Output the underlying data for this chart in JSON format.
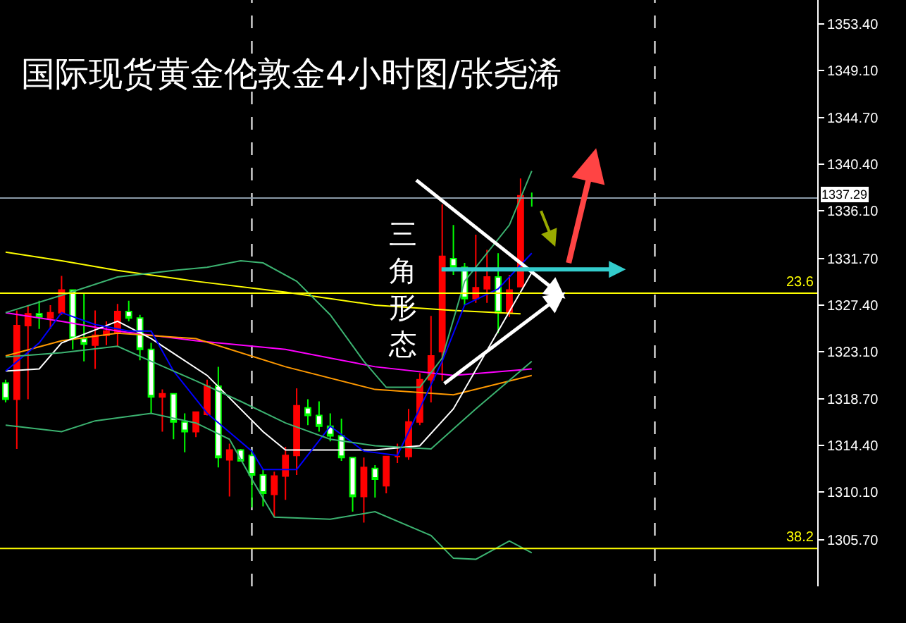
{
  "chart_data": {
    "type": "candlestick",
    "title": "国际现货黄金伦敦金4小时图/张尧浠",
    "annotations": [
      "三角形态",
      {
        "text": "23.6",
        "y": 1328.5
      },
      {
        "text": "38.2",
        "y": 1304.9
      }
    ],
    "categories": [
      null,
      null,
      null,
      null,
      null,
      null,
      null,
      null,
      null,
      null,
      null,
      null,
      null,
      null,
      null,
      null,
      null,
      null,
      null,
      null,
      null,
      null,
      null,
      null,
      null,
      null,
      null,
      null,
      null,
      null,
      null,
      null,
      null,
      null,
      null,
      null,
      null,
      null,
      null,
      null,
      null,
      null,
      null,
      null,
      null,
      null,
      null,
      null,
      null,
      null,
      null,
      null,
      null,
      null,
      null,
      null,
      null,
      null,
      null,
      null,
      null,
      null,
      null,
      null,
      null,
      null,
      null,
      null,
      null,
      null,
      null,
      null,
      null
    ],
    "ohlc": [
      [
        1320.2,
        1320.5,
        1318.4,
        1318.7
      ],
      [
        1318.7,
        1326.9,
        1314.1,
        1325.5
      ],
      [
        1325.5,
        1327.4,
        1318.7,
        1326.6
      ],
      [
        1326.6,
        1327.8,
        1325.2,
        1326.3
      ],
      [
        1326.2,
        1327.4,
        1325.2,
        1326.7
      ],
      [
        1326.7,
        1330.1,
        1326.5,
        1328.8
      ],
      [
        1328.8,
        1328.8,
        1323.3,
        1324.3
      ],
      [
        1324.3,
        1328.5,
        1322.2,
        1323.8
      ],
      [
        1323.7,
        1326.9,
        1321.5,
        1324.6
      ],
      [
        1324.6,
        1325.9,
        1323.7,
        1325.0
      ],
      [
        1324.8,
        1327.5,
        1323.6,
        1326.8
      ],
      [
        1326.8,
        1327.8,
        1325.9,
        1326.2
      ],
      [
        1326.2,
        1326.5,
        1322.3,
        1323.3
      ],
      [
        1323.3,
        1323.9,
        1317.4,
        1318.9
      ],
      [
        1318.9,
        1319.6,
        1315.7,
        1319.2
      ],
      [
        1319.2,
        1319.2,
        1315.0,
        1316.6
      ],
      [
        1316.6,
        1317.4,
        1313.8,
        1315.7
      ],
      [
        1315.7,
        1317.5,
        1315.2,
        1317.5
      ],
      [
        1317.3,
        1320.5,
        1317.2,
        1319.9
      ],
      [
        1319.9,
        1321.7,
        1312.4,
        1313.3
      ],
      [
        1313.1,
        1314.6,
        1309.7,
        1314.0
      ],
      [
        1314.0,
        1314.1,
        1313.0,
        1313.0
      ],
      [
        1313.5,
        1314.0,
        1308.7,
        1311.7
      ],
      [
        1311.7,
        1312.2,
        1308.8,
        1310.0
      ],
      [
        1309.9,
        1312.0,
        1307.8,
        1311.6
      ],
      [
        1311.6,
        1314.3,
        1309.4,
        1313.5
      ],
      [
        1313.5,
        1319.7,
        1311.7,
        1318.1
      ],
      [
        1317.9,
        1318.7,
        1316.3,
        1317.2
      ],
      [
        1317.2,
        1318.5,
        1315.7,
        1316.2
      ],
      [
        1316.2,
        1317.4,
        1314.8,
        1315.3
      ],
      [
        1315.3,
        1316.9,
        1313.0,
        1313.3
      ],
      [
        1313.3,
        1313.3,
        1308.3,
        1309.7
      ],
      [
        1309.7,
        1313.3,
        1307.3,
        1312.4
      ],
      [
        1312.3,
        1312.6,
        1309.6,
        1311.3
      ],
      [
        1310.7,
        1313.4,
        1310.0,
        1313.4
      ],
      [
        1313.4,
        1314.6,
        1312.8,
        1313.4
      ],
      [
        1313.4,
        1317.8,
        1313.1,
        1316.6
      ],
      [
        1316.6,
        1321.1,
        1316.3,
        1320.5
      ],
      [
        1320.5,
        1326.4,
        1318.4,
        1322.7
      ],
      [
        1323.1,
        1336.7,
        1320.4,
        1331.9
      ],
      [
        1331.7,
        1334.8,
        1330.2,
        1330.9
      ],
      [
        1330.9,
        1331.3,
        1327.4,
        1328.0
      ],
      [
        1328.0,
        1333.9,
        1327.6,
        1329.0
      ],
      [
        1328.9,
        1332.5,
        1327.6,
        1330.0
      ],
      [
        1330.0,
        1332.2,
        1324.8,
        1326.7
      ],
      [
        1326.7,
        1330.2,
        1326.3,
        1328.8
      ],
      [
        1329.1,
        1339.1,
        1329.1,
        1337.5
      ],
      [
        1337.3,
        1337.8,
        1336.5,
        1337.3
      ],
      null,
      null,
      null,
      null,
      null,
      null,
      null,
      null,
      null,
      null,
      null,
      null,
      null,
      null,
      null,
      null,
      null,
      null,
      null,
      null,
      null,
      null,
      null,
      null,
      null
    ],
    "series": [
      {
        "type": "line",
        "color": "#ffff00",
        "values": [
          1332.3,
          null,
          null,
          null,
          null,
          1331.5,
          null,
          null,
          null,
          null,
          1330.6,
          null,
          null,
          null,
          null,
          null,
          null,
          1329.6,
          null,
          null,
          null,
          null,
          null,
          null,
          null,
          1328.6,
          null,
          null,
          null,
          null,
          null,
          null,
          null,
          1327.4,
          null,
          null,
          null,
          null,
          null,
          null,
          1326.9,
          null,
          null,
          null,
          null,
          null,
          1326.6,
          null,
          null,
          null,
          null,
          null,
          null,
          null,
          null,
          null,
          null,
          null,
          null,
          null,
          null,
          null,
          null,
          null,
          null,
          null,
          null,
          null,
          null,
          null,
          null,
          null,
          null
        ]
      },
      {
        "type": "line",
        "color": "#ff00ff",
        "values": [
          1326.7,
          null,
          null,
          null,
          null,
          1325.9,
          null,
          null,
          null,
          null,
          1325.0,
          null,
          null,
          null,
          null,
          null,
          null,
          1324.1,
          null,
          null,
          null,
          null,
          null,
          null,
          null,
          1323.3,
          null,
          null,
          null,
          null,
          null,
          null,
          null,
          1321.7,
          null,
          null,
          null,
          null,
          null,
          null,
          1320.9,
          null,
          null,
          null,
          null,
          null,
          null,
          1321.5,
          null,
          null,
          null,
          null,
          null,
          null,
          null,
          null,
          null,
          null,
          null,
          null,
          null,
          null,
          null,
          null,
          null,
          null,
          null,
          null,
          null,
          null,
          null,
          null,
          null
        ]
      },
      {
        "type": "line",
        "color": "#ff9900",
        "values": [
          1322.7,
          null,
          null,
          null,
          null,
          1324.1,
          null,
          null,
          null,
          null,
          1324.8,
          null,
          null,
          null,
          null,
          null,
          null,
          1324.3,
          null,
          null,
          null,
          null,
          null,
          null,
          null,
          1321.7,
          null,
          null,
          null,
          null,
          null,
          null,
          null,
          1319.6,
          null,
          null,
          null,
          null,
          null,
          null,
          1319.1,
          null,
          null,
          null,
          null,
          null,
          null,
          1320.9,
          null,
          null,
          null,
          null,
          null,
          null,
          null,
          null,
          null,
          null,
          null,
          null,
          null,
          null,
          null,
          null,
          null,
          null,
          null,
          null,
          null,
          null,
          null,
          null,
          null
        ]
      },
      {
        "type": "line",
        "color": "#ffffff",
        "values": [
          1321.3,
          null,
          null,
          1321.5,
          null,
          1323.9,
          null,
          null,
          null,
          null,
          1325.9,
          null,
          null,
          1324.3,
          null,
          null,
          null,
          null,
          1320.9,
          null,
          null,
          null,
          null,
          1315.7,
          null,
          1314.0,
          null,
          null,
          null,
          1314.0,
          null,
          null,
          null,
          1314.0,
          null,
          null,
          null,
          1314.4,
          null,
          null,
          1317.8,
          null,
          null,
          null,
          null,
          null,
          null,
          1330.4,
          null,
          null,
          null,
          null,
          null,
          null,
          null,
          null,
          null,
          null,
          null,
          null,
          null,
          null,
          null,
          null,
          null,
          null,
          null,
          null,
          null,
          null,
          null,
          null,
          null
        ]
      },
      {
        "type": "line",
        "color": "#0000ff",
        "values": [
          1321.3,
          null,
          null,
          1323.9,
          null,
          1326.7,
          null,
          null,
          1325.6,
          null,
          null,
          1325.0,
          null,
          1325.0,
          null,
          1321.3,
          null,
          null,
          1317.4,
          null,
          null,
          null,
          1313.9,
          1312.2,
          null,
          null,
          1312.2,
          null,
          null,
          1316.2,
          null,
          null,
          1313.9,
          null,
          null,
          1313.5,
          null,
          null,
          null,
          1322.2,
          null,
          1327.4,
          null,
          null,
          1328.9,
          null,
          null,
          1332.2,
          null,
          null,
          null,
          null,
          null,
          null,
          null,
          null,
          null,
          null,
          null,
          null,
          null,
          null,
          null,
          null,
          null,
          null,
          null,
          null,
          null,
          null,
          null,
          null,
          null
        ]
      },
      {
        "type": "line",
        "color": "#3cb371",
        "values": [
          1326.7,
          null,
          null,
          null,
          null,
          1328.3,
          null,
          null,
          null,
          null,
          1330.0,
          null,
          null,
          null,
          null,
          1330.6,
          null,
          null,
          1330.9,
          null,
          null,
          1331.5,
          null,
          1331.3,
          null,
          null,
          1329.6,
          null,
          null,
          1326.5,
          null,
          null,
          1322.2,
          null,
          1319.8,
          null,
          null,
          1319.8,
          null,
          1322.5,
          null,
          1329.6,
          null,
          null,
          null,
          1334.8,
          null,
          1339.8,
          null,
          null,
          null,
          null,
          null,
          null,
          null,
          null,
          null,
          null,
          null,
          null,
          null,
          null,
          null,
          null,
          null,
          null,
          null,
          null,
          null,
          null,
          null,
          null,
          null
        ]
      },
      {
        "type": "line",
        "color": "#3cb371",
        "values": [
          1322.6,
          null,
          null,
          null,
          null,
          1323.0,
          null,
          null,
          null,
          null,
          1323.6,
          null,
          null,
          1322.2,
          null,
          null,
          null,
          1320.4,
          null,
          null,
          null,
          1318.5,
          null,
          null,
          null,
          1316.5,
          null,
          null,
          null,
          1315.0,
          null,
          null,
          null,
          1314.4,
          null,
          null,
          null,
          null,
          1314.1,
          null,
          null,
          null,
          1317.8,
          null,
          null,
          null,
          null,
          1322.2,
          null,
          null,
          null,
          null,
          null,
          null,
          null,
          null,
          null,
          null,
          null,
          null,
          null,
          null,
          null,
          null,
          null,
          null,
          null,
          null,
          null,
          null,
          null,
          null,
          null
        ]
      },
      {
        "type": "line",
        "color": "#3cb371",
        "values": [
          1316.3,
          null,
          null,
          null,
          null,
          1315.7,
          null,
          null,
          1316.7,
          null,
          null,
          null,
          null,
          1317.4,
          null,
          null,
          null,
          1316.5,
          null,
          null,
          1315.0,
          null,
          1311.3,
          null,
          1307.8,
          null,
          null,
          null,
          null,
          1307.6,
          null,
          null,
          null,
          1308.3,
          null,
          null,
          null,
          null,
          1306.1,
          null,
          1304.0,
          null,
          1303.9,
          null,
          null,
          1305.6,
          null,
          1304.5,
          null,
          null,
          null,
          null,
          null,
          null,
          null,
          null,
          null,
          null,
          null,
          null,
          null,
          null,
          null,
          null,
          null,
          null,
          null,
          null,
          null,
          null,
          null,
          null,
          null
        ]
      }
    ],
    "ref_lines": [
      {
        "axis": "y",
        "value": 1328.5,
        "color": "#ffff00"
      },
      {
        "axis": "y",
        "value": 1304.9,
        "color": "#ffff00"
      },
      {
        "axis": "y",
        "value": 1337.29,
        "label": "1337.29",
        "color": "#8a9aa8"
      }
    ],
    "ylim": [
      1301.4,
      1355.6
    ],
    "yticks": [
      {
        "value": 1353.4,
        "label": "1353.40"
      },
      {
        "value": 1349.1,
        "label": "1349.10"
      },
      {
        "value": 1344.7,
        "label": "1344.70"
      },
      {
        "value": 1340.4,
        "label": "1340.40"
      },
      {
        "value": 1336.1,
        "label": "1336.10"
      },
      {
        "value": 1331.7,
        "label": "1331.70"
      },
      {
        "value": 1327.4,
        "label": "1327.40"
      },
      {
        "value": 1323.1,
        "label": "1323.10"
      },
      {
        "value": 1318.7,
        "label": "1318.70"
      },
      {
        "value": 1314.4,
        "label": "1314.40"
      },
      {
        "value": 1310.1,
        "label": "1310.10"
      },
      {
        "value": 1305.7,
        "label": "1305.70"
      }
    ],
    "tick_labels": "y"
  }
}
